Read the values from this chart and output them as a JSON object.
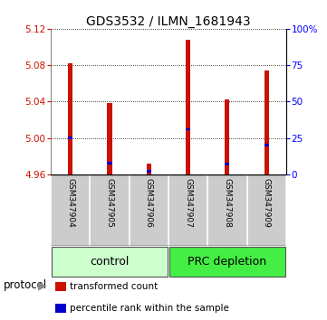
{
  "title": "GDS3532 / ILMN_1681943",
  "samples": [
    "GSM347904",
    "GSM347905",
    "GSM347906",
    "GSM347907",
    "GSM347908",
    "GSM347909"
  ],
  "transformed_counts": [
    5.082,
    5.038,
    4.972,
    5.108,
    5.042,
    5.074
  ],
  "percentile_ranks": [
    25,
    8,
    2,
    31,
    7,
    20
  ],
  "y_min": 4.96,
  "y_max": 5.12,
  "y_ticks": [
    4.96,
    5.0,
    5.04,
    5.08,
    5.12
  ],
  "y_right_ticks": [
    0,
    25,
    50,
    75,
    100
  ],
  "y_right_labels": [
    "0",
    "25",
    "50",
    "75",
    "100%"
  ],
  "bar_color": "#cc1100",
  "percentile_color": "#0000cc",
  "groups": [
    {
      "label": "control",
      "indices": [
        0,
        1,
        2
      ],
      "bg_color": "#ccffcc",
      "border_color": "#888888"
    },
    {
      "label": "PRC depletion",
      "indices": [
        3,
        4,
        5
      ],
      "bg_color": "#44ee44",
      "border_color": "#888888"
    }
  ],
  "protocol_label": "protocol",
  "legend_items": [
    {
      "label": "transformed count",
      "color": "#cc1100"
    },
    {
      "label": "percentile rank within the sample",
      "color": "#0000cc"
    }
  ],
  "bar_width": 0.12,
  "title_fontsize": 10,
  "tick_fontsize": 7.5,
  "sample_fontsize": 6.5,
  "group_fontsize": 9
}
